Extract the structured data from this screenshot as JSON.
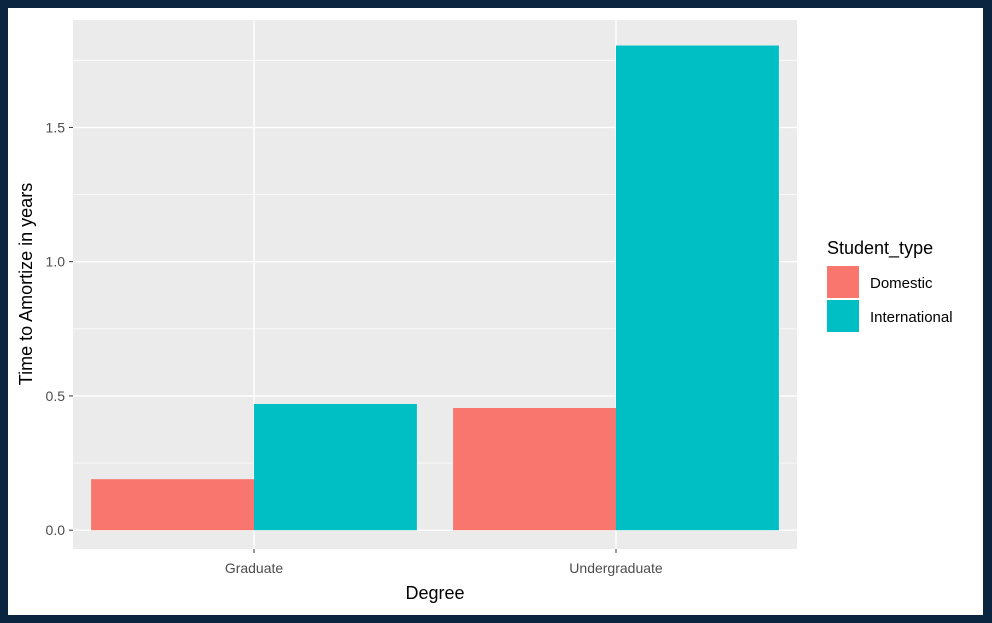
{
  "colors": {
    "page_border": "#0b2540",
    "panel_background": "#ebebeb",
    "grid_major": "#ffffff",
    "domestic": "#f8766d",
    "international": "#00bfc4"
  },
  "chart_data": {
    "type": "bar",
    "categories": [
      "Graduate",
      "Undergraduate"
    ],
    "series": [
      {
        "name": "Domestic",
        "values": [
          0.19,
          0.455
        ],
        "color": "#f8766d"
      },
      {
        "name": "International",
        "values": [
          0.47,
          1.805
        ],
        "color": "#00bfc4"
      }
    ],
    "xlabel": "Degree",
    "ylabel": "Time to Amortize in years",
    "legend_title": "Student_type",
    "legend_position": "right",
    "ylim": [
      -0.07,
      1.9
    ],
    "yticks": [
      0.0,
      0.5,
      1.0,
      1.5
    ],
    "ytick_labels": [
      "0.0",
      "0.5",
      "1.0",
      "1.5"
    ],
    "grid": true
  }
}
